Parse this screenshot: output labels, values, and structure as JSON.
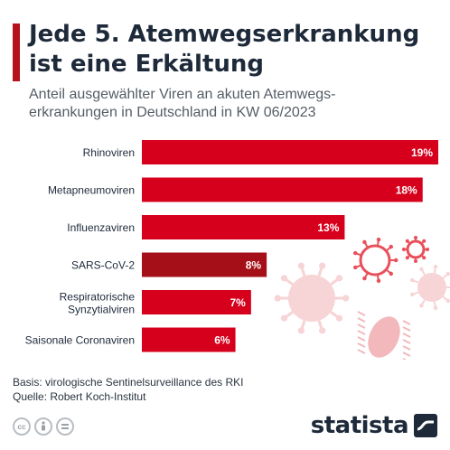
{
  "header": {
    "title_line1": "Jede 5. Atemwegserkrankung",
    "title_line2": "ist eine Erkältung",
    "subtitle_line1": "Anteil ausgewählter Viren an akuten Atemwegs-",
    "subtitle_line2": "erkrankungen in Deutschland in KW 06/2023"
  },
  "chart_data": {
    "type": "bar",
    "orientation": "horizontal",
    "categories": [
      "Rhinoviren",
      "Metapneumoviren",
      "Influenzaviren",
      "SARS-CoV-2",
      "Respiratorische Synzytialviren",
      "Saisonale Coronaviren"
    ],
    "values": [
      19,
      18,
      13,
      8,
      7,
      6
    ],
    "value_labels": [
      "19%",
      "18%",
      "13%",
      "8%",
      "7%",
      "6%"
    ],
    "highlight_index": 3,
    "xlim": [
      0,
      19
    ],
    "grid": false,
    "colors": {
      "bar": "#d6001c",
      "highlight": "#a50f17"
    }
  },
  "footer": {
    "basis": "Basis: virologische Sentinelsurveillance des RKI",
    "source": "Quelle: Robert Koch-Institut",
    "logo_text": "statista",
    "cc_icons": [
      "cc-icon",
      "by-icon",
      "nd-icon"
    ]
  }
}
